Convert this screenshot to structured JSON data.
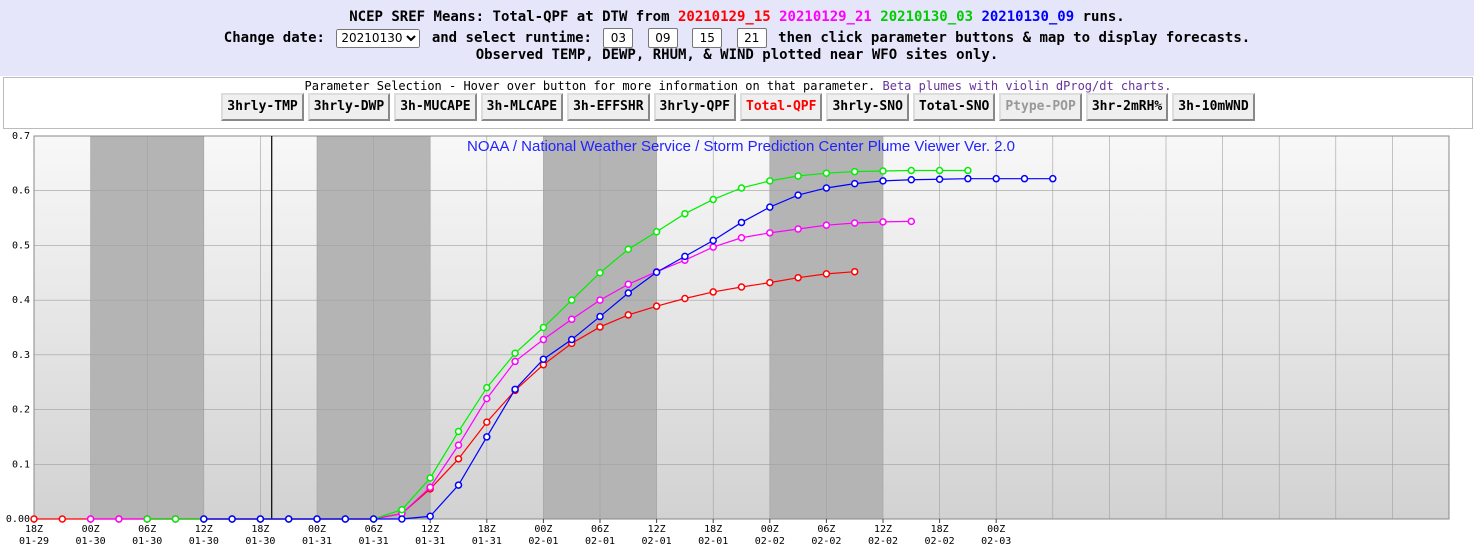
{
  "header": {
    "title_prefix": "NCEP SREF Means: Total-QPF at DTW from",
    "runs": [
      "20210129_15",
      "20210129_21",
      "20210130_03",
      "20210130_09"
    ],
    "title_suffix": "runs.",
    "change_date_label": "Change date:",
    "date_value": "20210130",
    "runtime_label": "and select runtime:",
    "runtimes": [
      "03",
      "09",
      "15",
      "21"
    ],
    "after_runtime": "then click parameter buttons & map to display forecasts.",
    "line3": "Observed TEMP, DEWP, RHUM, & WIND plotted near WFO sites only."
  },
  "panel": {
    "text": "Parameter Selection - Hover over button for more information on that parameter.",
    "beta_link": "Beta plumes with violin dProg/dt charts.",
    "buttons": [
      "3hrly-TMP",
      "3hrly-DWP",
      "3h-MUCAPE",
      "3h-MLCAPE",
      "3h-EFFSHR",
      "3hrly-QPF",
      "Total-QPF",
      "3hrly-SNO",
      "Total-SNO",
      "Ptype-POP",
      "3hr-2mRH%",
      "3h-10mWND"
    ],
    "active": "Total-QPF",
    "disabled": "Ptype-POP"
  },
  "chart_data": {
    "type": "line",
    "title": "NOAA / National Weather Service / Storm Prediction Center Plume Viewer Ver. 2.0",
    "ylim": [
      0,
      0.7
    ],
    "yticks": [
      "0.00",
      "0.1",
      "0.2",
      "0.3",
      "0.4",
      "0.5",
      "0.6",
      "0.7"
    ],
    "x_hour_start": "2021-01-29 18Z",
    "x_step_hours": 3,
    "xlim_steps": [
      0,
      50
    ],
    "xtick_labels": [
      [
        "18Z",
        "01-29"
      ],
      [
        "00Z",
        "01-30"
      ],
      [
        "06Z",
        "01-30"
      ],
      [
        "12Z",
        "01-30"
      ],
      [
        "18Z",
        "01-30"
      ],
      [
        "00Z",
        "01-31"
      ],
      [
        "06Z",
        "01-31"
      ],
      [
        "12Z",
        "01-31"
      ],
      [
        "18Z",
        "01-31"
      ],
      [
        "00Z",
        "02-01"
      ],
      [
        "06Z",
        "02-01"
      ],
      [
        "12Z",
        "02-01"
      ],
      [
        "18Z",
        "02-01"
      ],
      [
        "00Z",
        "02-02"
      ],
      [
        "06Z",
        "02-02"
      ],
      [
        "12Z",
        "02-02"
      ],
      [
        "18Z",
        "02-02"
      ],
      [
        "00Z",
        "02-03"
      ]
    ],
    "shaded_night_steps": [
      [
        2,
        6
      ],
      [
        10,
        14
      ],
      [
        18,
        22
      ],
      [
        26,
        30
      ]
    ],
    "current_time_step": 8.4,
    "series": [
      {
        "color": "#ff0000",
        "start_step": 0,
        "values": [
          0,
          0,
          0,
          0,
          0,
          0,
          0,
          0,
          0,
          0,
          0,
          0,
          0,
          0.01,
          0.055,
          0.11,
          0.177,
          0.235,
          0.282,
          0.321,
          0.351,
          0.373,
          0.389,
          0.403,
          0.415,
          0.424,
          0.432,
          0.441,
          0.448,
          0.452
        ]
      },
      {
        "color": "#ff00ff",
        "start_step": 2,
        "values": [
          0,
          0,
          0,
          0,
          0,
          0,
          0,
          0,
          0,
          0,
          0,
          0.01,
          0.058,
          0.135,
          0.22,
          0.288,
          0.328,
          0.365,
          0.4,
          0.429,
          0.452,
          0.473,
          0.497,
          0.514,
          0.523,
          0.53,
          0.537,
          0.541,
          0.543,
          0.544
        ]
      },
      {
        "color": "#00ee00",
        "start_step": 4,
        "values": [
          0,
          0,
          0,
          0,
          0,
          0,
          0,
          0,
          0,
          0.017,
          0.075,
          0.16,
          0.24,
          0.303,
          0.35,
          0.4,
          0.45,
          0.493,
          0.525,
          0.558,
          0.584,
          0.605,
          0.618,
          0.627,
          0.632,
          0.635,
          0.636,
          0.637,
          0.637,
          0.637
        ]
      },
      {
        "color": "#0000ff",
        "start_step": 6,
        "values": [
          0,
          0,
          0,
          0,
          0,
          0,
          0,
          0,
          0.005,
          0.062,
          0.15,
          0.237,
          0.292,
          0.328,
          0.37,
          0.413,
          0.451,
          0.48,
          0.509,
          0.542,
          0.57,
          0.592,
          0.605,
          0.613,
          0.618,
          0.62,
          0.621,
          0.622,
          0.622,
          0.622,
          0.622
        ]
      }
    ]
  }
}
